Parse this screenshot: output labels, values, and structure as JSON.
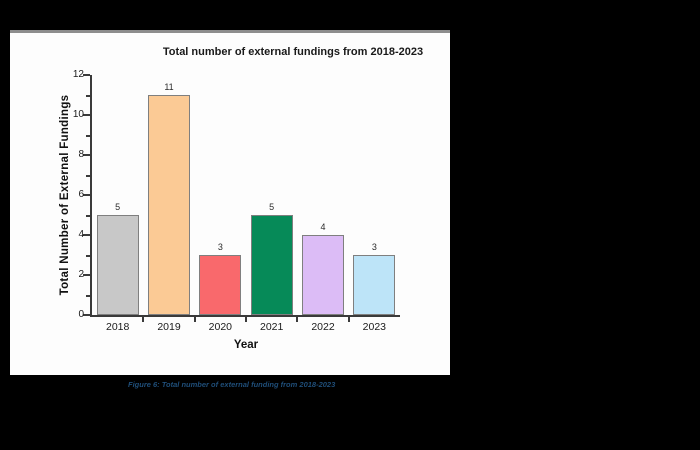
{
  "canvas": {
    "background_color": "#000000",
    "panel_background": "#fdfdfd",
    "panel_top_edge_color": "#8d8d8d"
  },
  "chart_data": {
    "type": "bar",
    "title": "Total number of external fundings from 2018-2023",
    "xlabel": "Year",
    "ylabel": "Total Number of External Fundings",
    "categories": [
      "2018",
      "2019",
      "2020",
      "2021",
      "2022",
      "2023"
    ],
    "values": [
      5,
      11,
      3,
      5,
      4,
      3
    ],
    "value_labels": [
      "5",
      "11",
      "3",
      "5",
      "4",
      "3"
    ],
    "bar_colors": [
      "#c8c8c8",
      "#fbca95",
      "#f9696c",
      "#068a58",
      "#dcbcf6",
      "#bde4f8"
    ],
    "bar_border_color": "#7f7f7f",
    "ylim": [
      0,
      12
    ],
    "yticks": [
      0,
      2,
      4,
      6,
      8,
      10,
      12
    ],
    "yticks_minor": [
      1,
      3,
      5,
      7,
      9,
      11
    ],
    "grid": false,
    "legend_position": "none",
    "axis_color": "#3a3a3a"
  },
  "caption": {
    "text": "Figure 6: Total number of external funding from 2018-2023",
    "color": "#1f4e79"
  }
}
